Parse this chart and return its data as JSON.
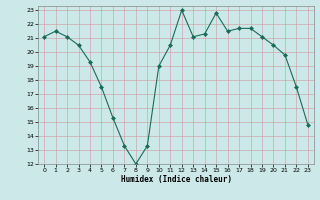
{
  "x": [
    0,
    1,
    2,
    3,
    4,
    5,
    6,
    7,
    8,
    9,
    10,
    11,
    12,
    13,
    14,
    15,
    16,
    17,
    18,
    19,
    20,
    21,
    22,
    23
  ],
  "y": [
    21.1,
    21.5,
    21.1,
    20.5,
    19.3,
    17.5,
    15.3,
    13.3,
    12.0,
    13.3,
    19.0,
    20.5,
    23.0,
    21.1,
    21.3,
    22.8,
    21.5,
    21.7,
    21.7,
    21.1,
    20.5,
    19.8,
    17.5,
    14.8
  ],
  "xlabel": "Humidex (Indice chaleur)",
  "bg_color": "#cce8e8",
  "grid_color": "#aaaaaa",
  "line_color": "#1a6b5a",
  "marker_color": "#1a6b5a",
  "ylim": [
    12,
    23
  ],
  "xlim": [
    -0.5,
    23.5
  ],
  "yticks": [
    12,
    13,
    14,
    15,
    16,
    17,
    18,
    19,
    20,
    21,
    22,
    23
  ],
  "xticks": [
    0,
    1,
    2,
    3,
    4,
    5,
    6,
    7,
    8,
    9,
    10,
    11,
    12,
    13,
    14,
    15,
    16,
    17,
    18,
    19,
    20,
    21,
    22,
    23
  ]
}
